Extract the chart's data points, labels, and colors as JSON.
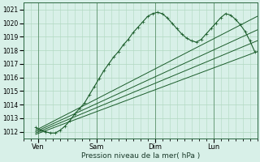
{
  "title": "",
  "xlabel": "Pression niveau de la mer( hPa )",
  "ylabel": "",
  "bg_color": "#d8f0e8",
  "grid_color": "#b0d8c0",
  "line_color": "#1a5c2a",
  "ylim": [
    1011.5,
    1021.5
  ],
  "day_labels": [
    "Ven",
    "Sam",
    "Dim",
    "Lun"
  ],
  "day_positions": [
    12,
    60,
    108,
    156
  ],
  "yticks": [
    1012,
    1013,
    1014,
    1015,
    1016,
    1017,
    1018,
    1019,
    1020,
    1021
  ],
  "xlim": [
    0,
    192
  ],
  "total_hours": 192,
  "figsize": [
    3.2,
    2.0
  ],
  "dpi": 100,
  "main_line": {
    "hrs": [
      10,
      14,
      18,
      22,
      26,
      30,
      34,
      38,
      42,
      46,
      50,
      54,
      58,
      62,
      66,
      70,
      74,
      78,
      82,
      86,
      90,
      94,
      98,
      102,
      106,
      110,
      114,
      118,
      122,
      126,
      130,
      134,
      138,
      142,
      146,
      150,
      154,
      158,
      162,
      166,
      170,
      174,
      178,
      182,
      186,
      190
    ],
    "vals": [
      1012.3,
      1012.1,
      1012.0,
      1011.9,
      1011.9,
      1012.1,
      1012.4,
      1012.8,
      1013.3,
      1013.7,
      1014.1,
      1014.7,
      1015.3,
      1015.9,
      1016.5,
      1017.0,
      1017.5,
      1017.9,
      1018.4,
      1018.8,
      1019.3,
      1019.7,
      1020.1,
      1020.5,
      1020.7,
      1020.8,
      1020.7,
      1020.4,
      1020.0,
      1019.6,
      1019.2,
      1018.9,
      1018.7,
      1018.6,
      1018.8,
      1019.2,
      1019.6,
      1020.0,
      1020.4,
      1020.7,
      1020.6,
      1020.3,
      1019.9,
      1019.4,
      1018.7,
      1017.9
    ]
  },
  "ensemble_lines": [
    {
      "hrs": [
        10,
        192
      ],
      "vals": [
        1012.1,
        1020.5
      ]
    },
    {
      "hrs": [
        10,
        192
      ],
      "vals": [
        1012.0,
        1019.5
      ]
    },
    {
      "hrs": [
        10,
        192
      ],
      "vals": [
        1011.9,
        1018.7
      ]
    },
    {
      "hrs": [
        10,
        192
      ],
      "vals": [
        1011.8,
        1017.9
      ]
    }
  ]
}
